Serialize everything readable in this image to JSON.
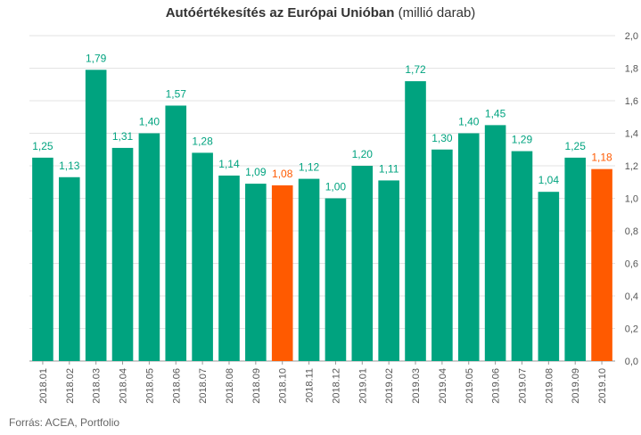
{
  "title": {
    "main": "Autóértékesítés az Európai Unióban",
    "unit": "(millió darab)"
  },
  "source": "Forrás: ACEA, Portfolio",
  "colors": {
    "default_bar": "#00a37f",
    "highlight_bar": "#ff5a00"
  },
  "chart_data": {
    "type": "bar",
    "title": "Autóértékesítés az Európai Unióban (millió darab)",
    "categories": [
      "2018.01",
      "2018.02",
      "2018.03",
      "2018.04",
      "2018.05",
      "2018.06",
      "2018.07",
      "2018.08",
      "2018.09",
      "2018.10",
      "2018.11",
      "2018.12",
      "2019.01",
      "2019.02",
      "2019.03",
      "2019.04",
      "2019.05",
      "2019.06",
      "2019.07",
      "2019.08",
      "2019.09",
      "2019.10"
    ],
    "values": [
      1.25,
      1.13,
      1.79,
      1.31,
      1.4,
      1.57,
      1.28,
      1.14,
      1.09,
      1.08,
      1.12,
      1.0,
      1.2,
      1.11,
      1.72,
      1.3,
      1.4,
      1.45,
      1.29,
      1.04,
      1.25,
      1.18
    ],
    "value_labels": [
      "1,25",
      "1,13",
      "1,79",
      "1,31",
      "1,40",
      "1,57",
      "1,28",
      "1,14",
      "1,09",
      "1,08",
      "1,12",
      "1,00",
      "1,20",
      "1,11",
      "1,72",
      "1,30",
      "1,40",
      "1,45",
      "1,29",
      "1,04",
      "1,25",
      "1,18"
    ],
    "highlighted": [
      "2018.10",
      "2019.10"
    ],
    "ylim": [
      0,
      2.0
    ],
    "yticks": [
      "0,0",
      "0,2",
      "0,4",
      "0,6",
      "0,8",
      "1,0",
      "1,2",
      "1,4",
      "1,6",
      "1,8",
      "2,0"
    ],
    "y_axis_side": "right",
    "grid": true,
    "xlabel": "",
    "ylabel": ""
  }
}
